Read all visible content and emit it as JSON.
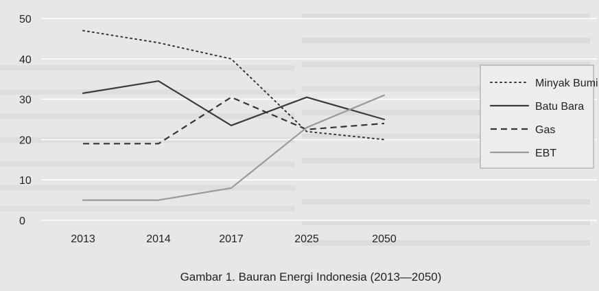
{
  "chart_data": {
    "type": "line",
    "title": "",
    "caption": "Gambar 1. Bauran Energi Indonesia (2013—2050)",
    "xlabel": "",
    "ylabel": "",
    "categories": [
      "2013",
      "2014",
      "2017",
      "2025",
      "2050"
    ],
    "ylim": [
      0,
      50
    ],
    "yticks": [
      0,
      10,
      20,
      30,
      40,
      50
    ],
    "grid": true,
    "legend_position": "right",
    "series": [
      {
        "name": "Minyak Bumi",
        "style": "dotted",
        "color": "#333333",
        "values": [
          47,
          44,
          40,
          22,
          20
        ]
      },
      {
        "name": "Batu Bara",
        "style": "solid",
        "color": "#3a3a3a",
        "values": [
          31.5,
          34.5,
          23.5,
          30.5,
          25
        ]
      },
      {
        "name": "Gas",
        "style": "dashed",
        "color": "#333333",
        "values": [
          19,
          19,
          30.5,
          22.5,
          24
        ]
      },
      {
        "name": "EBT",
        "style": "solid-light",
        "color": "#9a9a9a",
        "values": [
          5,
          5,
          8,
          23,
          31
        ]
      }
    ]
  }
}
